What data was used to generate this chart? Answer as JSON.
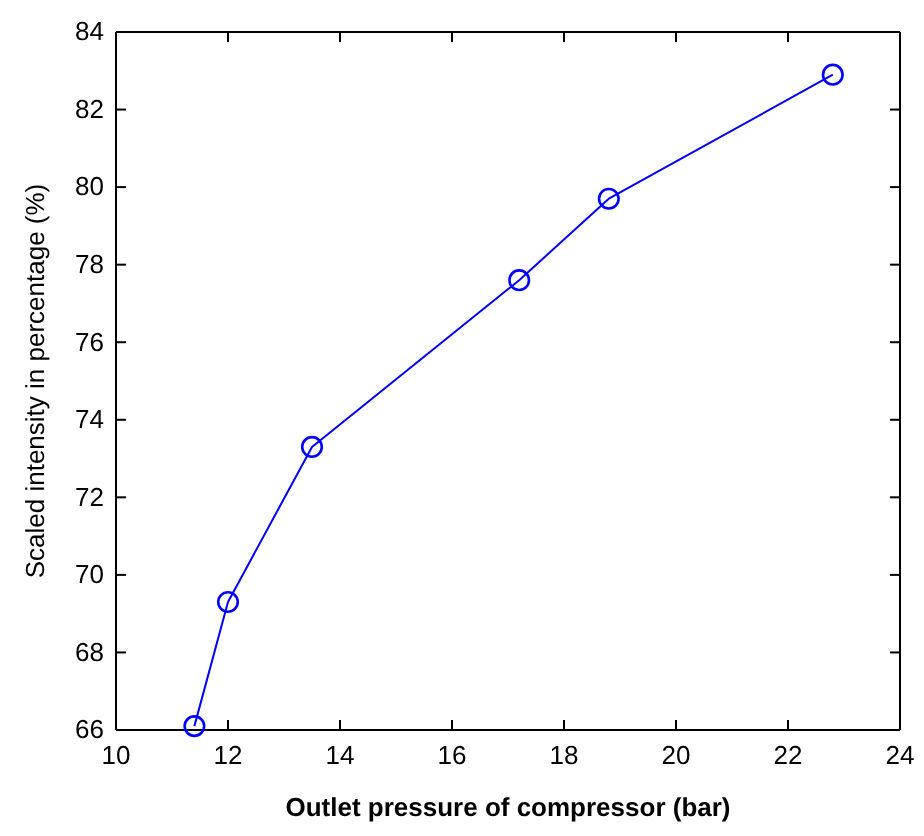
{
  "chart_data": {
    "type": "line",
    "xlabel": "Outlet pressure of compressor (bar)",
    "ylabel": "Scaled intensity in percentage (%)",
    "x": [
      11.4,
      12.0,
      13.5,
      17.2,
      18.8,
      22.8
    ],
    "series": [
      {
        "color": "#0000ff",
        "values": [
          66.1,
          69.3,
          73.3,
          77.6,
          79.7,
          82.9
        ]
      }
    ],
    "xlim": [
      10,
      24
    ],
    "xticks": [
      10,
      12,
      14,
      16,
      18,
      20,
      22,
      24
    ],
    "ylim": [
      66,
      84
    ],
    "yticks": [
      66,
      68,
      70,
      72,
      74,
      76,
      78,
      80,
      82,
      84
    ],
    "marker": "circle",
    "line_style": "solid"
  }
}
